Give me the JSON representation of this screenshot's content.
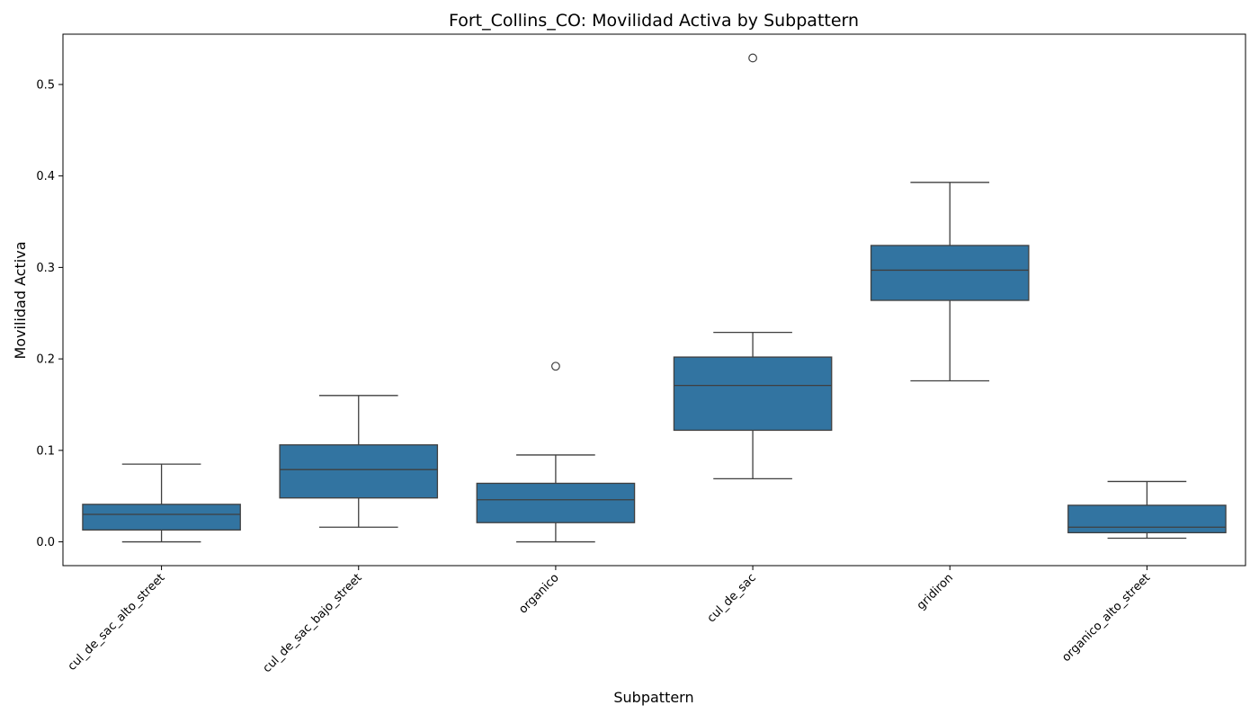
{
  "chart_data": {
    "type": "box",
    "title": "Fort_Collins_CO: Movilidad Activa by Subpattern",
    "xlabel": "Subpattern",
    "ylabel": "Movilidad Activa",
    "ylim": [
      -0.026,
      0.555
    ],
    "yticks": [
      0.0,
      0.1,
      0.2,
      0.3,
      0.4,
      0.5
    ],
    "ytick_labels": [
      "0.0",
      "0.1",
      "0.2",
      "0.3",
      "0.4",
      "0.5"
    ],
    "grid": false,
    "legend": "none",
    "color": "#3274a1",
    "categories": [
      "cul_de_sac_alto_street",
      "cul_de_sac_bajo_street",
      "organico",
      "cul_de_sac",
      "gridiron",
      "organico_alto_street"
    ],
    "boxes": [
      {
        "category": "cul_de_sac_alto_street",
        "whisker_low": 0.0,
        "q1": 0.013,
        "median": 0.03,
        "q3": 0.041,
        "whisker_high": 0.085,
        "outliers": []
      },
      {
        "category": "cul_de_sac_bajo_street",
        "whisker_low": 0.016,
        "q1": 0.048,
        "median": 0.079,
        "q3": 0.106,
        "whisker_high": 0.16,
        "outliers": []
      },
      {
        "category": "organico",
        "whisker_low": 0.0,
        "q1": 0.021,
        "median": 0.046,
        "q3": 0.064,
        "whisker_high": 0.095,
        "outliers": [
          0.192
        ]
      },
      {
        "category": "cul_de_sac",
        "whisker_low": 0.069,
        "q1": 0.122,
        "median": 0.171,
        "q3": 0.202,
        "whisker_high": 0.229,
        "outliers": [
          0.529
        ]
      },
      {
        "category": "gridiron",
        "whisker_low": 0.176,
        "q1": 0.264,
        "median": 0.297,
        "q3": 0.324,
        "whisker_high": 0.393,
        "outliers": []
      },
      {
        "category": "organico_alto_street",
        "whisker_low": 0.004,
        "q1": 0.01,
        "median": 0.016,
        "q3": 0.04,
        "whisker_high": 0.066,
        "outliers": []
      }
    ]
  }
}
